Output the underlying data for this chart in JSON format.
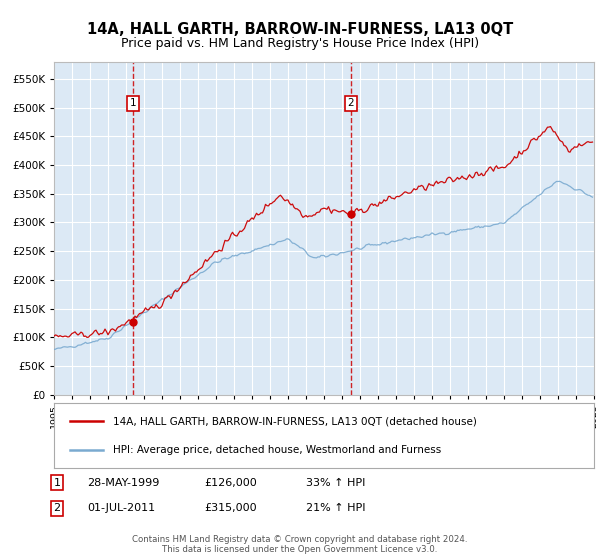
{
  "title": "14A, HALL GARTH, BARROW-IN-FURNESS, LA13 0QT",
  "subtitle": "Price paid vs. HM Land Registry's House Price Index (HPI)",
  "legend_line1": "14A, HALL GARTH, BARROW-IN-FURNESS, LA13 0QT (detached house)",
  "legend_line2": "HPI: Average price, detached house, Westmorland and Furness",
  "footnote": "Contains HM Land Registry data © Crown copyright and database right 2024.\nThis data is licensed under the Open Government Licence v3.0.",
  "sale1_date": "28-MAY-1999",
  "sale1_price": 126000,
  "sale1_hpi": "33% ↑ HPI",
  "sale2_date": "01-JUL-2011",
  "sale2_price": 315000,
  "sale2_hpi": "21% ↑ HPI",
  "sale1_label": "1",
  "sale2_label": "2",
  "sale1_year": 1999.4,
  "sale2_year": 2011.5,
  "ylim": [
    0,
    580000
  ],
  "xlim_start": 1995,
  "xlim_end": 2025,
  "background_color": "#dce9f5",
  "red_color": "#cc0000",
  "blue_color": "#7aaad0",
  "grid_color": "#ffffff",
  "title_fontsize": 10.5,
  "subtitle_fontsize": 9
}
